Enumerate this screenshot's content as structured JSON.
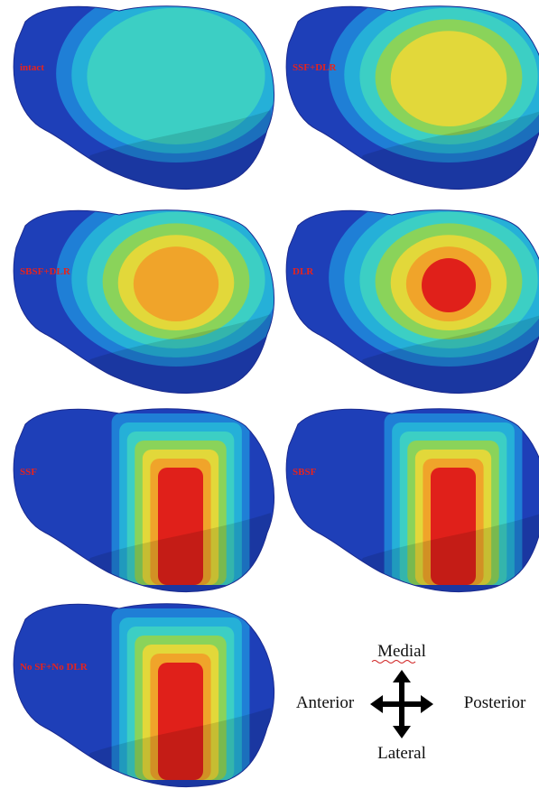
{
  "panels": [
    {
      "label": "intact"
    },
    {
      "label": "SSF+DLR"
    },
    {
      "label": "SBSF+DLR"
    },
    {
      "label": "DLR"
    },
    {
      "label": "SSF"
    },
    {
      "label": "SBSF"
    },
    {
      "label": "No SF+No DLR"
    }
  ],
  "orientation": {
    "top": "Medial",
    "bottom": "Lateral",
    "left": "Anterior",
    "right": "Posterior"
  }
}
